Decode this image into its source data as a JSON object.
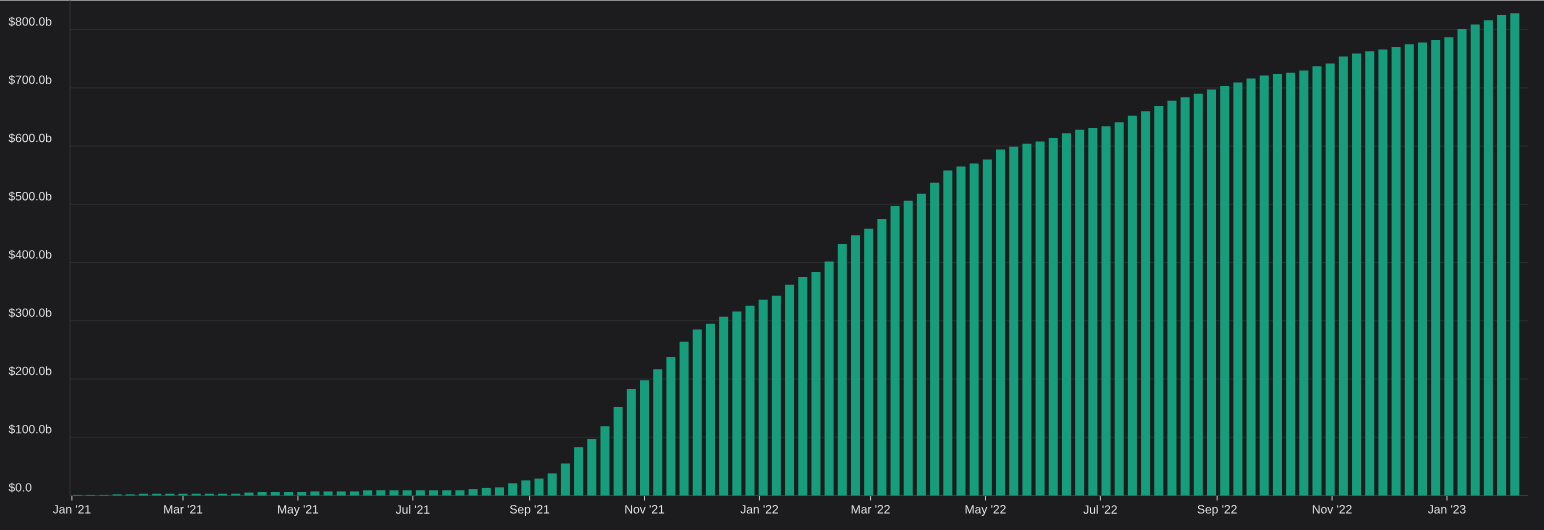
{
  "chart_data": {
    "type": "bar",
    "color": "#169e7c",
    "grid": "y",
    "x": [
      "2021-01-04",
      "2021-01-11",
      "2021-01-18",
      "2021-01-25",
      "2021-02-01",
      "2021-02-08",
      "2021-02-15",
      "2021-02-22",
      "2021-03-01",
      "2021-03-08",
      "2021-03-15",
      "2021-03-22",
      "2021-03-29",
      "2021-04-05",
      "2021-04-12",
      "2021-04-19",
      "2021-04-26",
      "2021-05-03",
      "2021-05-10",
      "2021-05-17",
      "2021-05-24",
      "2021-05-31",
      "2021-06-07",
      "2021-06-14",
      "2021-06-21",
      "2021-06-28",
      "2021-07-05",
      "2021-07-12",
      "2021-07-19",
      "2021-07-26",
      "2021-08-02",
      "2021-08-09",
      "2021-08-16",
      "2021-08-23",
      "2021-08-30",
      "2021-09-06",
      "2021-09-13",
      "2021-09-20",
      "2021-09-27",
      "2021-10-04",
      "2021-10-11",
      "2021-10-18",
      "2021-10-25",
      "2021-11-01",
      "2021-11-08",
      "2021-11-15",
      "2021-11-22",
      "2021-11-29",
      "2021-12-06",
      "2021-12-13",
      "2021-12-20",
      "2021-12-27",
      "2022-01-03",
      "2022-01-10",
      "2022-01-17",
      "2022-01-24",
      "2022-01-31",
      "2022-02-07",
      "2022-02-14",
      "2022-02-21",
      "2022-02-28",
      "2022-03-07",
      "2022-03-14",
      "2022-03-21",
      "2022-03-28",
      "2022-04-04",
      "2022-04-11",
      "2022-04-18",
      "2022-04-25",
      "2022-05-02",
      "2022-05-09",
      "2022-05-16",
      "2022-05-23",
      "2022-05-30",
      "2022-06-06",
      "2022-06-13",
      "2022-06-20",
      "2022-06-27",
      "2022-07-04",
      "2022-07-11",
      "2022-07-18",
      "2022-07-25",
      "2022-08-01",
      "2022-08-08",
      "2022-08-15",
      "2022-08-22",
      "2022-08-29",
      "2022-09-05",
      "2022-09-12",
      "2022-09-19",
      "2022-09-26",
      "2022-10-03",
      "2022-10-10",
      "2022-10-17",
      "2022-10-24",
      "2022-10-31",
      "2022-11-07",
      "2022-11-14",
      "2022-11-21",
      "2022-11-28",
      "2022-12-05",
      "2022-12-12",
      "2022-12-19",
      "2022-12-26",
      "2023-01-02",
      "2023-01-09",
      "2023-01-16",
      "2023-01-23",
      "2023-01-30",
      "2023-02-06"
    ],
    "values": [
      1,
      1,
      1,
      2,
      2,
      3,
      3,
      3,
      3,
      3,
      3,
      3,
      3,
      5,
      6,
      6,
      6,
      6,
      7,
      7,
      7,
      7,
      9,
      9,
      9,
      9,
      9,
      9,
      9,
      9,
      11,
      13,
      14,
      21,
      26,
      29,
      38,
      55,
      83,
      97,
      119,
      152,
      183,
      198,
      217,
      238,
      264,
      285,
      295,
      307,
      316,
      326,
      336,
      343,
      362,
      375,
      384,
      402,
      432,
      447,
      458,
      475,
      497,
      506,
      518,
      537,
      558,
      565,
      570,
      577,
      594,
      599,
      604,
      608,
      614,
      622,
      628,
      631,
      634,
      641,
      652,
      660,
      669,
      678,
      684,
      690,
      697,
      703,
      709,
      716,
      721,
      724,
      726,
      730,
      737,
      742,
      754,
      759,
      763,
      766,
      770,
      775,
      778,
      782,
      787,
      801,
      809,
      816,
      825,
      828
    ],
    "xlim": [
      "2020-12-31",
      "2023-02-13"
    ],
    "ylim": [
      0,
      850
    ],
    "xticks": [
      {
        "value": "2021-01-01",
        "label": "Jan '21"
      },
      {
        "value": "2021-03-01",
        "label": "Mar '21"
      },
      {
        "value": "2021-05-01",
        "label": "May '21"
      },
      {
        "value": "2021-07-01",
        "label": "Jul '21"
      },
      {
        "value": "2021-09-01",
        "label": "Sep '21"
      },
      {
        "value": "2021-11-01",
        "label": "Nov '21"
      },
      {
        "value": "2022-01-01",
        "label": "Jan '22"
      },
      {
        "value": "2022-03-01",
        "label": "Mar '22"
      },
      {
        "value": "2022-05-01",
        "label": "May '22"
      },
      {
        "value": "2022-07-01",
        "label": "Jul '22"
      },
      {
        "value": "2022-09-01",
        "label": "Sep '22"
      },
      {
        "value": "2022-11-01",
        "label": "Nov '22"
      },
      {
        "value": "2023-01-01",
        "label": "Jan '23"
      }
    ],
    "yticks": [
      {
        "value": 0,
        "label": "$0.0"
      },
      {
        "value": 100,
        "label": "$100.0b"
      },
      {
        "value": 200,
        "label": "$200.0b"
      },
      {
        "value": 300,
        "label": "$300.0b"
      },
      {
        "value": 400,
        "label": "$400.0b"
      },
      {
        "value": 500,
        "label": "$500.0b"
      },
      {
        "value": 600,
        "label": "$600.0b"
      },
      {
        "value": 700,
        "label": "$700.0b"
      },
      {
        "value": 800,
        "label": "$800.0b"
      }
    ]
  }
}
